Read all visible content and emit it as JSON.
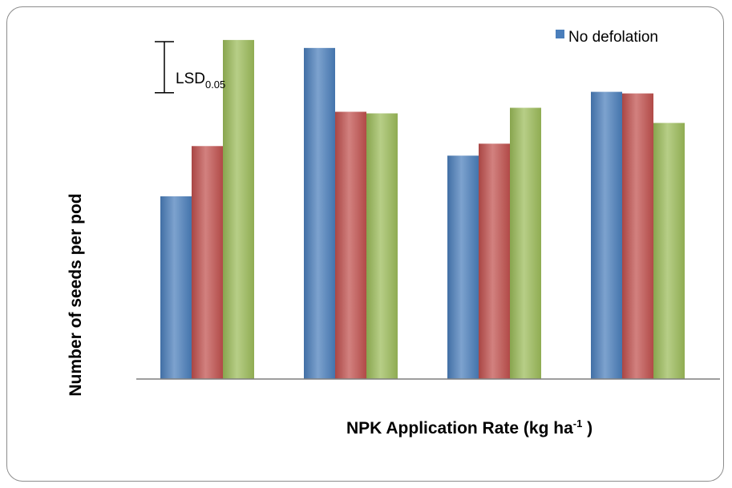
{
  "chart_data": {
    "type": "bar",
    "categories": [
      "",
      "",
      "",
      ""
    ],
    "series": [
      {
        "name": "No defolation",
        "color": "#4a7ebb",
        "values": [
          2.29,
          4.15,
          2.8,
          3.6
        ]
      },
      {
        "name": "",
        "color": "#c0504d",
        "values": [
          2.92,
          3.35,
          2.95,
          3.58
        ]
      },
      {
        "name": "",
        "color": "#9bbb59",
        "values": [
          4.25,
          3.33,
          3.4,
          3.21
        ]
      }
    ],
    "ylim": [
      0,
      4.5
    ],
    "xlabel_main": "NPK Application Rate (kg ha",
    "xlabel_sup": "-1",
    "xlabel_end": " )",
    "ylabel": "Number of seeds per pod",
    "legend": {
      "label": "No defolation",
      "position": "top-right"
    },
    "lsd": {
      "label_main": "LSD",
      "label_sub": "0.05",
      "value": 0.64
    },
    "grid": false
  }
}
